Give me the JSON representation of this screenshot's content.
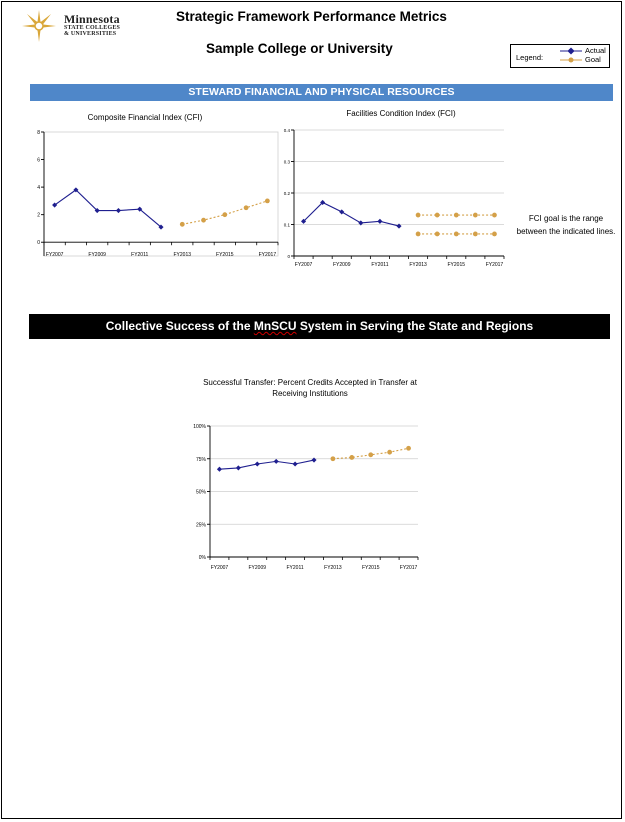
{
  "header": {
    "logo": {
      "name": "Minnesota",
      "sub1": "STATE COLLEGES",
      "sub2": "& UNIVERSITIES"
    },
    "title": "Strategic Framework Performance Metrics",
    "subtitle": "Sample College or University",
    "legend": {
      "label": "Legend:",
      "actual": "Actual",
      "goal": "Goal"
    }
  },
  "colors": {
    "actual": "#1f1f8f",
    "goal": "#d4a048",
    "section_blue": "#4f87c9",
    "section_black": "#000000"
  },
  "section1": {
    "title": "STEWARD FINANCIAL AND PHYSICAL RESOURCES"
  },
  "section2": {
    "before": "Collective Success of the ",
    "squiggle": "MnSCU",
    "after": " System in Serving the State and Regions"
  },
  "fci_note": {
    "line1": "FCI goal is the range",
    "line2": "between the indicated lines."
  },
  "chart_data": [
    {
      "type": "line",
      "title": "Composite Financial Index (CFI)",
      "xlabel": "",
      "ylabel": "",
      "categories": [
        "FY2007",
        "FY2008",
        "FY2009",
        "FY2010",
        "FY2011",
        "FY2012",
        "FY2013",
        "FY2014",
        "FY2015",
        "FY2016",
        "FY2017"
      ],
      "tick_labels": [
        "FY2007",
        "FY2009",
        "FY2011",
        "FY2013",
        "FY2015",
        "FY2017"
      ],
      "ylim": [
        -1,
        8
      ],
      "yticks": [
        0,
        2,
        4,
        6,
        8
      ],
      "series": [
        {
          "name": "Actual",
          "values": [
            2.7,
            3.8,
            2.3,
            2.3,
            2.4,
            1.1,
            null,
            null,
            null,
            null,
            null
          ]
        },
        {
          "name": "Goal",
          "values": [
            null,
            null,
            null,
            null,
            null,
            null,
            1.3,
            1.6,
            2.0,
            2.5,
            3.0
          ]
        }
      ],
      "grid": false
    },
    {
      "type": "line",
      "title": "Facilities Condition Index (FCI)",
      "xlabel": "",
      "ylabel": "",
      "categories": [
        "FY2007",
        "FY2008",
        "FY2009",
        "FY2010",
        "FY2011",
        "FY2012",
        "FY2013",
        "FY2014",
        "FY2015",
        "FY2016",
        "FY2017"
      ],
      "tick_labels": [
        "FY2007",
        "FY2009",
        "FY2011",
        "FY2013",
        "FY2015",
        "FY2017"
      ],
      "ylim": [
        0,
        0.4
      ],
      "yticks": [
        0,
        0.1,
        0.2,
        0.3,
        0.4
      ],
      "ytick_labels": [
        "0",
        "0.1",
        "0.2",
        "0.3",
        "0.4"
      ],
      "series": [
        {
          "name": "Actual",
          "values": [
            0.11,
            0.17,
            0.14,
            0.105,
            0.11,
            0.095,
            null,
            null,
            null,
            null,
            null
          ]
        },
        {
          "name": "Goal",
          "values": [
            null,
            null,
            null,
            null,
            null,
            null,
            0.13,
            0.13,
            0.13,
            0.13,
            0.13
          ]
        },
        {
          "name": "Goal",
          "values": [
            null,
            null,
            null,
            null,
            null,
            null,
            0.07,
            0.07,
            0.07,
            0.07,
            0.07
          ]
        }
      ],
      "grid": true
    },
    {
      "type": "line",
      "title_line1": "Successful Transfer: Percent Credits Accepted in Transfer at",
      "title_line2": "Receiving Institutions",
      "xlabel": "",
      "ylabel": "",
      "categories": [
        "FY2007",
        "FY2008",
        "FY2009",
        "FY2010",
        "FY2011",
        "FY2012",
        "FY2013",
        "FY2014",
        "FY2015",
        "FY2016",
        "FY2017"
      ],
      "tick_labels": [
        "FY2007",
        "FY2009",
        "FY2011",
        "FY2013",
        "FY2015",
        "FY2017"
      ],
      "ylim": [
        0,
        100
      ],
      "yticks": [
        0,
        25,
        50,
        75,
        100
      ],
      "ytick_labels": [
        "0%",
        "25%",
        "50%",
        "75%",
        "100%"
      ],
      "series": [
        {
          "name": "Actual",
          "values": [
            67,
            68,
            71,
            73,
            71,
            74,
            null,
            null,
            null,
            null,
            null
          ]
        },
        {
          "name": "Goal",
          "values": [
            null,
            null,
            null,
            null,
            null,
            null,
            75,
            76,
            78,
            80,
            83
          ]
        }
      ],
      "grid": true
    }
  ]
}
